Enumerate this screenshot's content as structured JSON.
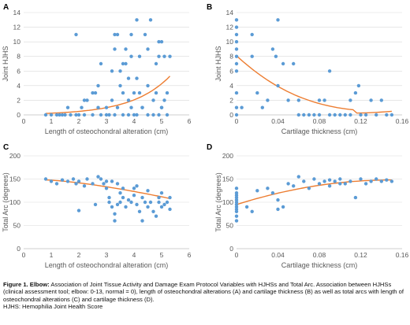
{
  "caption": {
    "label": "Figure 1. Elbow:",
    "text": "Association of Joint Tissue Activity and Damage Exam Protocol Variables with HJHSs and Total Arc. Association between HJHSs (clinical assessment tool; elbow: 0-13, normal = 0), length of osteochondral alterations (A) and cartilage thickness (B) as well as total arcs with length of osteochondral alterations (C) and cartilage thickness (D).",
    "footnote": "HJHS: Hemophilia Joint Health Score"
  },
  "colors": {
    "points": "#5b9bd5",
    "trend": "#ed7d31",
    "grid": "#d9d9d9",
    "axis": "#bfbfbf"
  },
  "chart_data": [
    {
      "panel": "A",
      "type": "scatter",
      "xlabel": "Length of osteochondral alteration (cm)",
      "ylabel": "Joint HJHS",
      "xlim": [
        0,
        6
      ],
      "ylim": [
        0,
        14
      ],
      "xticks": [
        0,
        1,
        2,
        3,
        4,
        5,
        6
      ],
      "yticks": [
        0,
        2,
        4,
        6,
        8,
        10,
        12,
        14
      ],
      "grid": "horizontal",
      "points": [
        [
          0.8,
          0
        ],
        [
          1.0,
          0
        ],
        [
          1.2,
          0
        ],
        [
          1.3,
          0
        ],
        [
          1.4,
          0
        ],
        [
          1.5,
          0
        ],
        [
          1.7,
          0
        ],
        [
          1.9,
          0
        ],
        [
          2.0,
          0
        ],
        [
          2.2,
          0
        ],
        [
          2.5,
          0
        ],
        [
          2.8,
          0
        ],
        [
          3.0,
          0
        ],
        [
          3.3,
          0
        ],
        [
          3.6,
          0
        ],
        [
          3.8,
          0
        ],
        [
          4.1,
          0
        ],
        [
          4.5,
          0
        ],
        [
          4.9,
          0
        ],
        [
          5.2,
          0
        ],
        [
          1.6,
          1
        ],
        [
          2.1,
          1
        ],
        [
          2.7,
          1
        ],
        [
          3.4,
          1
        ],
        [
          4.3,
          1
        ],
        [
          5.0,
          1
        ],
        [
          1.9,
          11
        ],
        [
          2.2,
          2
        ],
        [
          2.3,
          2
        ],
        [
          2.5,
          3
        ],
        [
          2.6,
          3
        ],
        [
          2.8,
          7
        ],
        [
          2.7,
          4
        ],
        [
          3.0,
          1
        ],
        [
          3.1,
          0
        ],
        [
          3.2,
          2
        ],
        [
          3.2,
          6
        ],
        [
          3.3,
          9
        ],
        [
          3.3,
          11
        ],
        [
          3.4,
          11
        ],
        [
          3.5,
          4
        ],
        [
          3.5,
          6
        ],
        [
          3.6,
          3
        ],
        [
          3.6,
          7
        ],
        [
          3.7,
          7
        ],
        [
          3.7,
          9
        ],
        [
          3.8,
          2
        ],
        [
          3.8,
          5
        ],
        [
          3.9,
          1
        ],
        [
          3.9,
          8
        ],
        [
          3.9,
          11
        ],
        [
          4.0,
          0
        ],
        [
          4.0,
          3
        ],
        [
          4.1,
          13
        ],
        [
          4.1,
          5
        ],
        [
          4.2,
          3
        ],
        [
          4.2,
          8
        ],
        [
          4.3,
          1
        ],
        [
          4.4,
          11
        ],
        [
          4.5,
          9
        ],
        [
          4.5,
          4
        ],
        [
          4.6,
          13
        ],
        [
          4.7,
          0
        ],
        [
          4.7,
          2
        ],
        [
          4.8,
          3
        ],
        [
          4.8,
          7
        ],
        [
          4.9,
          10
        ],
        [
          4.9,
          8
        ],
        [
          5.0,
          10
        ],
        [
          5.0,
          1
        ],
        [
          5.1,
          8
        ],
        [
          5.1,
          2
        ],
        [
          5.2,
          3
        ],
        [
          5.3,
          8
        ]
      ],
      "trend": {
        "type": "exponential",
        "x": [
          0.8,
          5.3
        ],
        "y": [
          0.2,
          5.3
        ]
      }
    },
    {
      "panel": "B",
      "type": "scatter",
      "xlabel": "Cartilage thickness (cm)",
      "ylabel": "Joint HJHS",
      "xlim": [
        0,
        0.16
      ],
      "ylim": [
        0,
        14
      ],
      "xticks": [
        0,
        0.04,
        0.08,
        0.12,
        0.16
      ],
      "yticks": [
        0,
        2,
        4,
        6,
        8,
        10,
        12,
        14
      ],
      "grid": "horizontal",
      "points": [
        [
          0,
          13
        ],
        [
          0,
          12
        ],
        [
          0,
          11
        ],
        [
          0,
          10
        ],
        [
          0,
          9
        ],
        [
          0,
          8
        ],
        [
          0,
          7
        ],
        [
          0,
          6
        ],
        [
          0,
          3
        ],
        [
          0,
          0
        ],
        [
          0,
          1
        ],
        [
          0.005,
          1
        ],
        [
          0.015,
          11
        ],
        [
          0.015,
          8
        ],
        [
          0.02,
          3
        ],
        [
          0.025,
          1
        ],
        [
          0.03,
          2
        ],
        [
          0.035,
          9
        ],
        [
          0.038,
          8
        ],
        [
          0.04,
          13
        ],
        [
          0.04,
          4
        ],
        [
          0.045,
          7
        ],
        [
          0.05,
          2
        ],
        [
          0.055,
          7
        ],
        [
          0.06,
          0
        ],
        [
          0.065,
          0
        ],
        [
          0.07,
          0
        ],
        [
          0.075,
          0
        ],
        [
          0.08,
          2
        ],
        [
          0.085,
          2
        ],
        [
          0.09,
          6
        ],
        [
          0.09,
          0
        ],
        [
          0.095,
          0
        ],
        [
          0.1,
          0
        ],
        [
          0.105,
          0
        ],
        [
          0.11,
          2
        ],
        [
          0.115,
          3
        ],
        [
          0.118,
          4
        ],
        [
          0.12,
          0
        ],
        [
          0.125,
          0
        ],
        [
          0.13,
          2
        ],
        [
          0.135,
          0
        ],
        [
          0.14,
          2
        ],
        [
          0.145,
          0
        ],
        [
          0.15,
          0
        ],
        [
          0.06,
          2
        ],
        [
          0.08,
          0
        ],
        [
          0.11,
          0
        ]
      ],
      "trend": {
        "type": "polynomial",
        "x": [
          0,
          0.15
        ],
        "y": [
          8.1,
          0.5
        ]
      }
    },
    {
      "panel": "C",
      "type": "scatter",
      "xlabel": "Length of osteochondral alteration (cm)",
      "ylabel": "Total Arc (degrees)",
      "xlim": [
        0,
        6
      ],
      "ylim": [
        0,
        200
      ],
      "xticks": [
        0,
        1,
        2,
        3,
        4,
        5,
        6
      ],
      "yticks": [
        0,
        50,
        100,
        150,
        200
      ],
      "grid": "horizontal",
      "points": [
        [
          0.8,
          150
        ],
        [
          1.0,
          145
        ],
        [
          1.2,
          140
        ],
        [
          1.4,
          148
        ],
        [
          1.6,
          145
        ],
        [
          1.8,
          150
        ],
        [
          1.9,
          140
        ],
        [
          2.0,
          82
        ],
        [
          2.0,
          145
        ],
        [
          2.2,
          135
        ],
        [
          2.3,
          150
        ],
        [
          2.5,
          140
        ],
        [
          2.6,
          95
        ],
        [
          2.7,
          155
        ],
        [
          2.8,
          150
        ],
        [
          2.9,
          140
        ],
        [
          3.0,
          145
        ],
        [
          3.0,
          130
        ],
        [
          3.1,
          110
        ],
        [
          3.1,
          100
        ],
        [
          3.2,
          145
        ],
        [
          3.2,
          90
        ],
        [
          3.3,
          75
        ],
        [
          3.3,
          60
        ],
        [
          3.4,
          140
        ],
        [
          3.4,
          95
        ],
        [
          3.5,
          120
        ],
        [
          3.5,
          100
        ],
        [
          3.6,
          110
        ],
        [
          3.6,
          130
        ],
        [
          3.7,
          90
        ],
        [
          3.8,
          105
        ],
        [
          3.9,
          100
        ],
        [
          4.0,
          115
        ],
        [
          4.0,
          130
        ],
        [
          4.1,
          135
        ],
        [
          4.1,
          95
        ],
        [
          4.2,
          80
        ],
        [
          4.3,
          60
        ],
        [
          4.3,
          110
        ],
        [
          4.4,
          100
        ],
        [
          4.5,
          90
        ],
        [
          4.5,
          125
        ],
        [
          4.6,
          100
        ],
        [
          4.7,
          80
        ],
        [
          4.8,
          70
        ],
        [
          4.9,
          100
        ],
        [
          4.9,
          110
        ],
        [
          5.0,
          120
        ],
        [
          5.0,
          90
        ],
        [
          5.1,
          95
        ],
        [
          5.2,
          100
        ],
        [
          5.3,
          85
        ],
        [
          5.3,
          110
        ]
      ],
      "trend": {
        "type": "polynomial",
        "x": [
          0.8,
          5.3
        ],
        "y": [
          148,
          108
        ]
      }
    },
    {
      "panel": "D",
      "type": "scatter",
      "xlabel": "Cartilage thickness (cm)",
      "ylabel": "Total Arc (degrees)",
      "xlim": [
        0,
        0.16
      ],
      "ylim": [
        0,
        200
      ],
      "xticks": [
        0,
        0.04,
        0.08,
        0.12,
        0.16
      ],
      "yticks": [
        0,
        50,
        100,
        150,
        200
      ],
      "grid": "horizontal",
      "points": [
        [
          0,
          60
        ],
        [
          0,
          70
        ],
        [
          0,
          80
        ],
        [
          0,
          85
        ],
        [
          0,
          90
        ],
        [
          0,
          95
        ],
        [
          0,
          100
        ],
        [
          0,
          105
        ],
        [
          0,
          110
        ],
        [
          0,
          115
        ],
        [
          0,
          120
        ],
        [
          0,
          130
        ],
        [
          0.01,
          90
        ],
        [
          0.015,
          80
        ],
        [
          0.02,
          125
        ],
        [
          0.03,
          130
        ],
        [
          0.035,
          120
        ],
        [
          0.04,
          105
        ],
        [
          0.04,
          85
        ],
        [
          0.045,
          90
        ],
        [
          0.05,
          140
        ],
        [
          0.055,
          135
        ],
        [
          0.06,
          155
        ],
        [
          0.065,
          145
        ],
        [
          0.07,
          130
        ],
        [
          0.075,
          150
        ],
        [
          0.08,
          140
        ],
        [
          0.085,
          145
        ],
        [
          0.09,
          135
        ],
        [
          0.095,
          145
        ],
        [
          0.1,
          150
        ],
        [
          0.105,
          140
        ],
        [
          0.11,
          145
        ],
        [
          0.115,
          110
        ],
        [
          0.12,
          150
        ],
        [
          0.125,
          140
        ],
        [
          0.13,
          145
        ],
        [
          0.135,
          150
        ],
        [
          0.14,
          145
        ],
        [
          0.145,
          148
        ],
        [
          0.15,
          145
        ],
        [
          0.09,
          148
        ],
        [
          0.1,
          140
        ]
      ],
      "trend": {
        "type": "polynomial",
        "x": [
          0,
          0.15
        ],
        "y": [
          95,
          148
        ]
      }
    }
  ]
}
